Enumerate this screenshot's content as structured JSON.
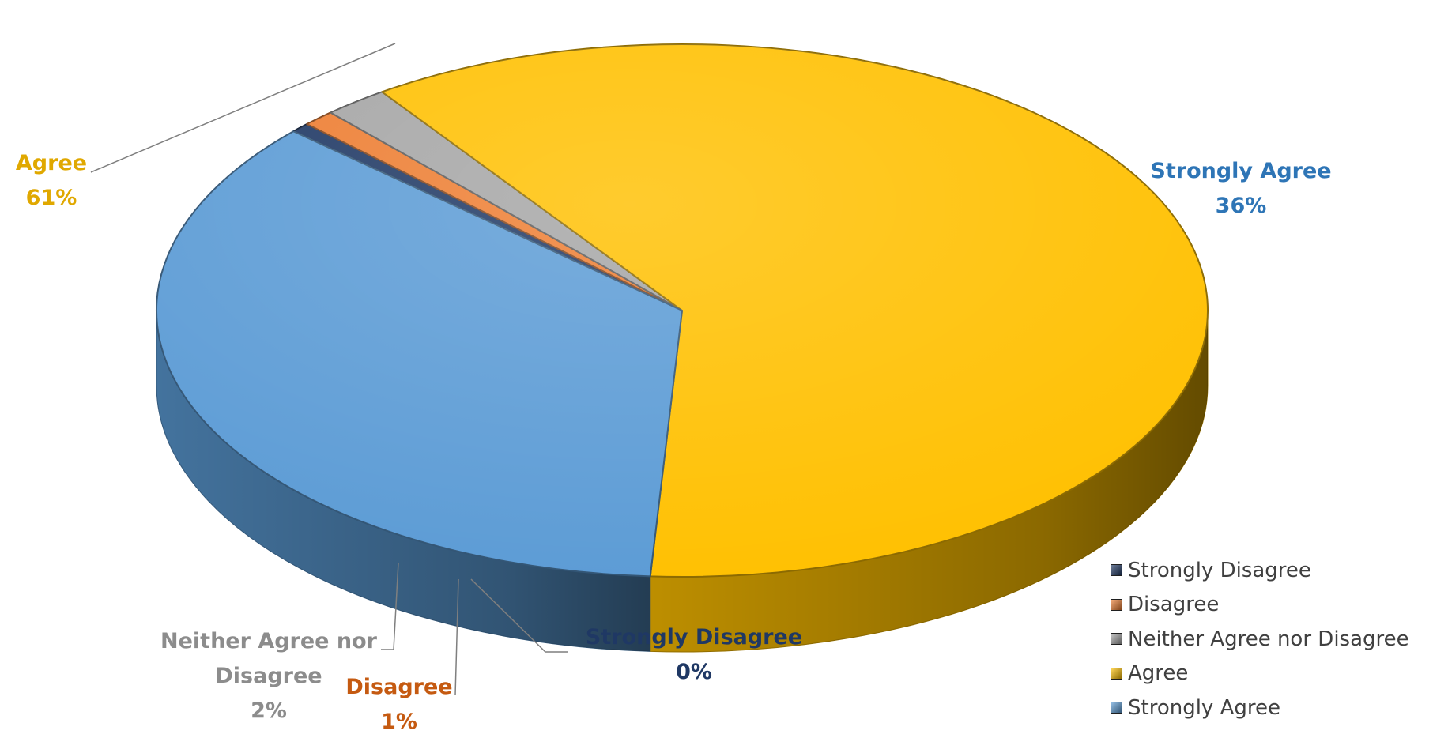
{
  "chart_data": {
    "type": "pie",
    "title": "",
    "three_d": true,
    "legend_position": "bottom-right",
    "slices": [
      {
        "label": "Strongly Disagree",
        "value": 0,
        "percent_label": "0%",
        "color": "#1f3864",
        "label_color": "#1f3864"
      },
      {
        "label": "Disagree",
        "value": 1,
        "percent_label": "1%",
        "color": "#ed7d31",
        "label_color": "#c55a11"
      },
      {
        "label": "Neither Agree nor Disagree",
        "value": 2,
        "percent_label": "2%",
        "color": "#a5a5a5",
        "label_color": "#8c8c8c"
      },
      {
        "label": "Agree",
        "value": 61,
        "percent_label": "61%",
        "color": "#ffc000",
        "label_color": "#e0a800"
      },
      {
        "label": "Strongly Agree",
        "value": 36,
        "percent_label": "36%",
        "color": "#5b9bd5",
        "label_color": "#2e75b6"
      }
    ],
    "data_labels": [
      {
        "lines": [
          "Agree"
        ],
        "percent": "61%"
      },
      {
        "lines": [
          "Strongly Agree"
        ],
        "percent": "36%"
      },
      {
        "lines": [
          "Neither Agree nor",
          "Disagree"
        ],
        "percent": "2%"
      },
      {
        "lines": [
          "Disagree"
        ],
        "percent": "1%"
      },
      {
        "lines": [
          "Strongly Disagree"
        ],
        "percent": "0%"
      }
    ],
    "legend": [
      "Strongly Disagree",
      "Disagree",
      "Neither Agree nor Disagree",
      "Agree",
      "Strongly Agree"
    ]
  }
}
